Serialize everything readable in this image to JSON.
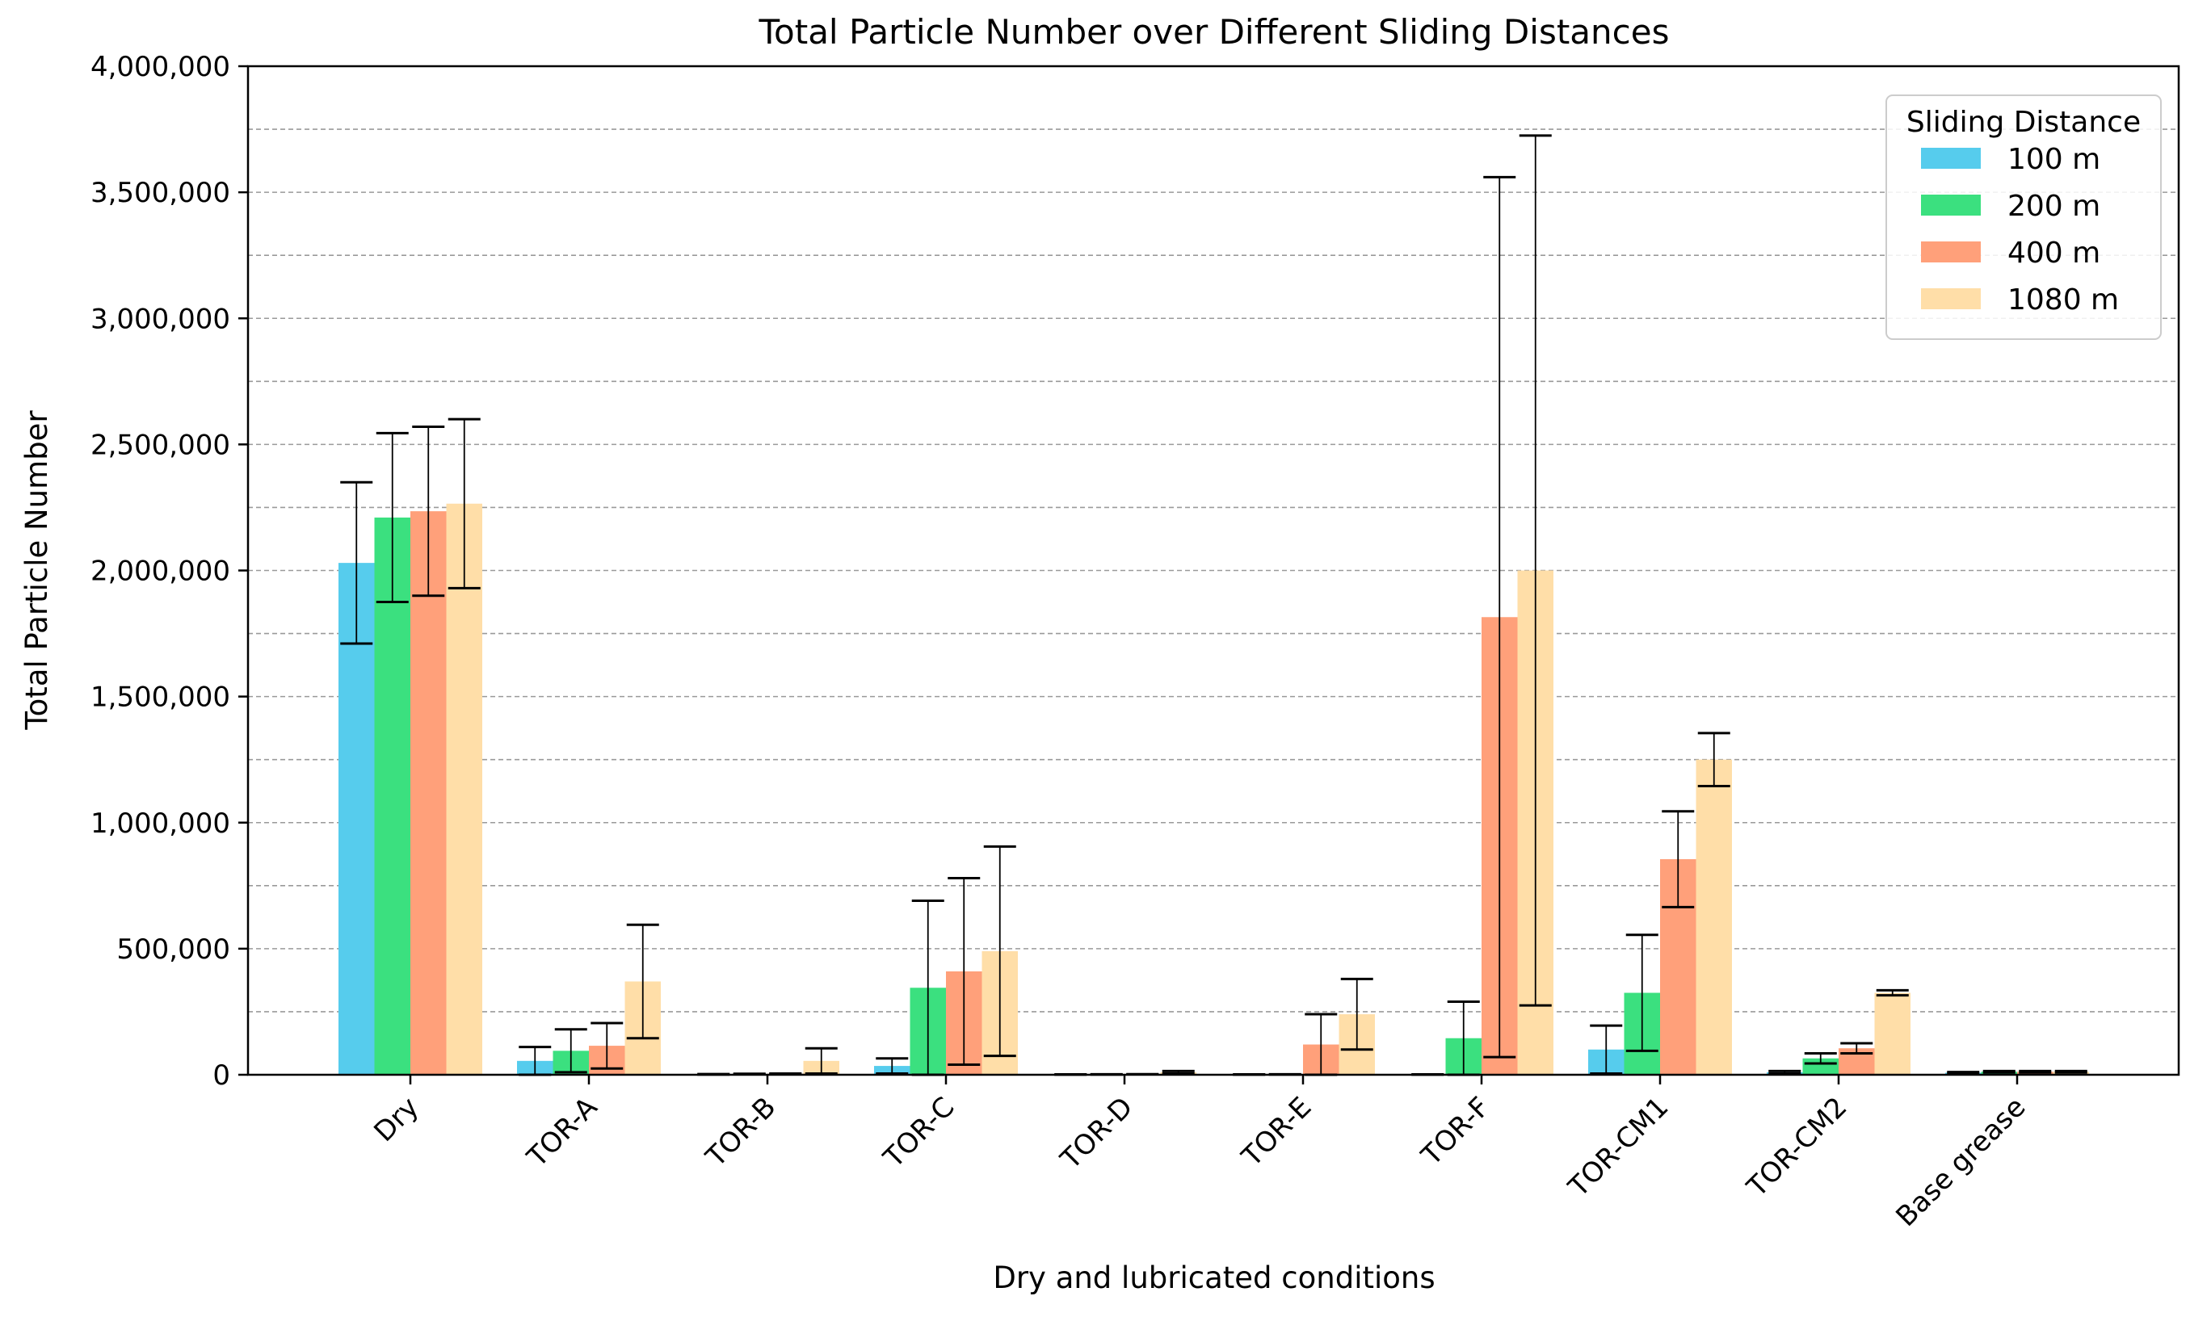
{
  "chart_data": {
    "type": "bar",
    "title": "Total Particle Number over Different Sliding Distances",
    "xlabel": "Dry and lubricated conditions",
    "ylabel": "Total Particle Number",
    "ylim": [
      0,
      4000000
    ],
    "y_ticks": [
      0,
      500000,
      1000000,
      1500000,
      2000000,
      2500000,
      3000000,
      3500000,
      4000000
    ],
    "y_tick_labels": [
      "0",
      "500,000",
      "1,000,000",
      "1,500,000",
      "2,000,000",
      "2,500,000",
      "3,000,000",
      "3,500,000",
      "4,000,000"
    ],
    "grid": "horizontal dashed, every 250,000",
    "categories": [
      "Dry",
      "TOR-A",
      "TOR-B",
      "TOR-C",
      "TOR-D",
      "TOR-E",
      "TOR-F",
      "TOR-CM1",
      "TOR-CM2",
      "Base grease"
    ],
    "legend": {
      "title": "Sliding Distance",
      "placement": "top-right"
    },
    "series": [
      {
        "name": "100 m",
        "color": "#56CCED",
        "values": [
          2030000,
          55000,
          2000,
          35000,
          1000,
          1000,
          1000,
          100000,
          10000,
          8000
        ],
        "errors": [
          320000,
          55000,
          1000,
          30000,
          500,
          500,
          500,
          95000,
          5000,
          3000
        ]
      },
      {
        "name": "200 m",
        "color": "#3BE07F",
        "values": [
          2210000,
          95000,
          3000,
          345000,
          1500,
          1500,
          145000,
          325000,
          65000,
          12000
        ],
        "errors": [
          335000,
          85000,
          1000,
          345000,
          500,
          500,
          145000,
          230000,
          20000,
          3000
        ]
      },
      {
        "name": "400 m",
        "color": "#FFA07A",
        "values": [
          2235000,
          115000,
          4000,
          410000,
          2000,
          120000,
          1815000,
          855000,
          105000,
          12000
        ],
        "errors": [
          335000,
          90000,
          1000,
          370000,
          500,
          120000,
          1745000,
          190000,
          20000,
          3000
        ]
      },
      {
        "name": "1080 m",
        "color": "#FFDEA8",
        "values": [
          2265000,
          370000,
          55000,
          490000,
          10000,
          240000,
          2000000,
          1250000,
          325000,
          12000
        ],
        "errors": [
          335000,
          225000,
          50000,
          415000,
          5000,
          140000,
          1725000,
          105000,
          10000,
          3000
        ]
      }
    ]
  }
}
